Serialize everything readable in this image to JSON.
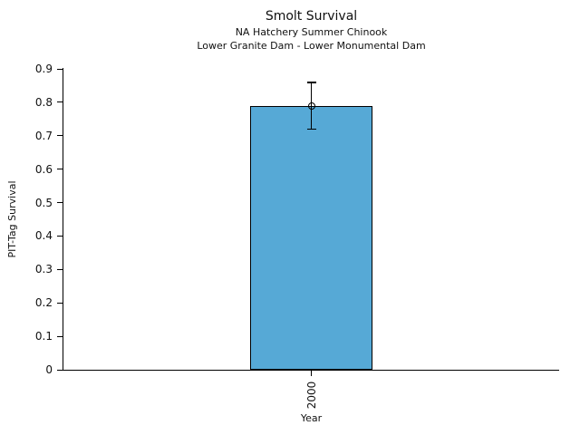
{
  "chart_data": {
    "type": "bar",
    "title": "Smolt Survival",
    "subtitles": [
      "NA Hatchery Summer Chinook",
      "Lower Granite Dam - Lower Monumental Dam"
    ],
    "xlabel": "Year",
    "ylabel": "PIT-Tag Survival",
    "categories": [
      "2000"
    ],
    "values": [
      0.79
    ],
    "error_bars": [
      {
        "low": 0.72,
        "high": 0.86
      }
    ],
    "ylim": [
      0,
      0.9
    ],
    "yticks": [
      0,
      0.1,
      0.2,
      0.3,
      0.4,
      0.5,
      0.6,
      0.7,
      0.8,
      0.9
    ],
    "ytick_labels": [
      "0",
      "0.1",
      "0.2",
      "0.3",
      "0.4",
      "0.5",
      "0.6",
      "0.7",
      "0.8",
      "0.9"
    ],
    "grid": false,
    "legend": "none",
    "bar_color": "#56A9D6",
    "bar_edge_color": "#000000",
    "marker": "open-circle"
  }
}
